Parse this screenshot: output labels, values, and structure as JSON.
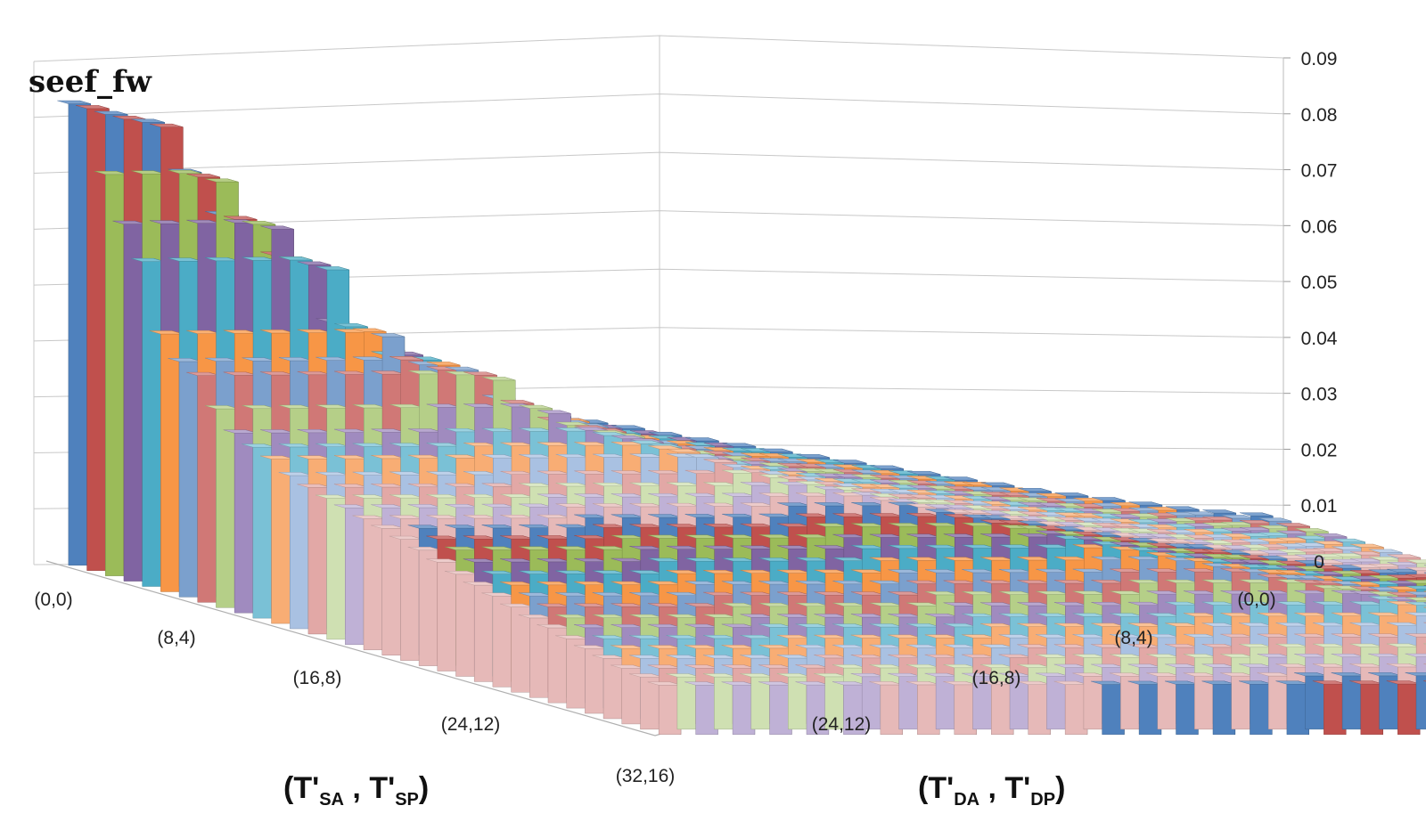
{
  "chart_data": {
    "type": "bar",
    "title": "seef_fw",
    "x_axis": {
      "label_main": "(T'",
      "label_sub1": "SA",
      "label_mid": " , T'",
      "label_sub2": "SP",
      "label_end": ")",
      "tick_labels": [
        "(0,0)",
        "(8,4)",
        "(16,8)",
        "(24,12)",
        "(32,16)"
      ]
    },
    "y_axis": {
      "label_main": "(T'",
      "label_sub1": "DA",
      "label_mid": " , T'",
      "label_sub2": "DP",
      "label_end": ")",
      "tick_labels": [
        "(0,0)",
        "(8,4)",
        "(16,8)",
        "(24,12)"
      ]
    },
    "z_axis": {
      "tick_labels": [
        "0",
        "0.01",
        "0.02",
        "0.03",
        "0.04",
        "0.05",
        "0.06",
        "0.07",
        "0.08",
        "0.09"
      ],
      "range": [
        0,
        0.09
      ]
    },
    "grid_rows": 33,
    "grid_cols": 33,
    "colors": [
      "#4f81bd",
      "#c0504d",
      "#9bbb59",
      "#8064a2",
      "#4bacc6",
      "#f79646",
      "#7ba0cd",
      "#d07876",
      "#b5cf88",
      "#a08bbf",
      "#7ac1d6",
      "#f8ad74",
      "#a9c1e2",
      "#e2a8a6",
      "#cfe0b2",
      "#bfb1d6",
      "#e6b9b8"
    ],
    "levels_rows": [
      0.0825,
      0.0825,
      0.0716,
      0.0636,
      0.0578,
      0.0458,
      0.0418,
      0.0402,
      0.0352,
      0.0318,
      0.0302,
      0.029,
      0.027,
      0.0258,
      0.0248,
      0.024,
      0.023,
      0.0222,
      0.0212,
      0.0202,
      0.019,
      0.0178,
      0.0168,
      0.0158,
      0.0148,
      0.0138,
      0.013,
      0.012,
      0.0112,
      0.0104,
      0.0096,
      0.009,
      0.0085
    ],
    "levels_cols": [
      0.0825,
      0.0805,
      0.079,
      0.07,
      0.0624,
      0.056,
      0.045,
      0.04,
      0.039,
      0.034,
      0.031,
      0.0295,
      0.028,
      0.0262,
      0.025,
      0.024,
      0.0228,
      0.0218,
      0.0208,
      0.0198,
      0.0188,
      0.0178,
      0.0168,
      0.0158,
      0.0148,
      0.0138,
      0.0128,
      0.012,
      0.0112,
      0.0104,
      0.0096,
      0.009,
      0.0085
    ]
  }
}
